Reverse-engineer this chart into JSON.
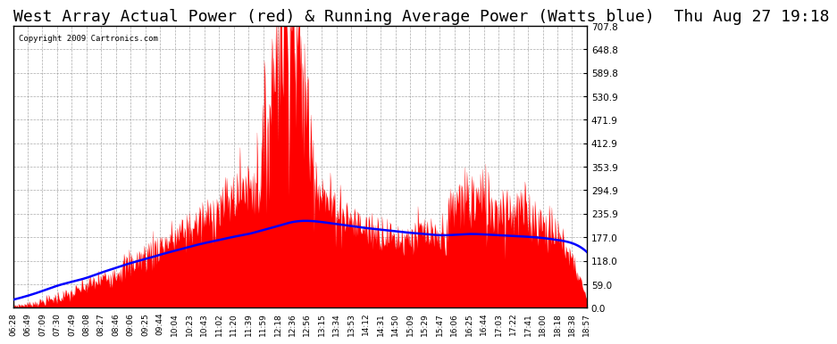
{
  "title": "West Array Actual Power (red) & Running Average Power (Watts blue)  Thu Aug 27 19:18",
  "copyright": "Copyright 2009 Cartronics.com",
  "ylabel": "",
  "ymin": 0.0,
  "ymax": 707.8,
  "yticks": [
    0.0,
    59.0,
    118.0,
    177.0,
    235.9,
    294.9,
    353.9,
    412.9,
    471.9,
    530.9,
    589.8,
    648.8,
    707.8
  ],
  "xtick_labels": [
    "06:28",
    "06:49",
    "07:09",
    "07:30",
    "07:49",
    "08:08",
    "08:27",
    "08:46",
    "09:06",
    "09:25",
    "09:44",
    "10:04",
    "10:23",
    "10:43",
    "11:02",
    "11:20",
    "11:39",
    "11:59",
    "12:18",
    "12:36",
    "12:56",
    "13:15",
    "13:34",
    "13:53",
    "14:12",
    "14:31",
    "14:50",
    "15:09",
    "15:29",
    "15:47",
    "16:06",
    "16:25",
    "16:44",
    "17:03",
    "17:22",
    "17:41",
    "18:00",
    "18:18",
    "18:38",
    "18:57"
  ],
  "bg_color": "#ffffff",
  "area_color": "#ff0000",
  "line_color": "#0000ff",
  "title_fontsize": 13,
  "title_bg": "#ffffff",
  "border_color": "#000000"
}
